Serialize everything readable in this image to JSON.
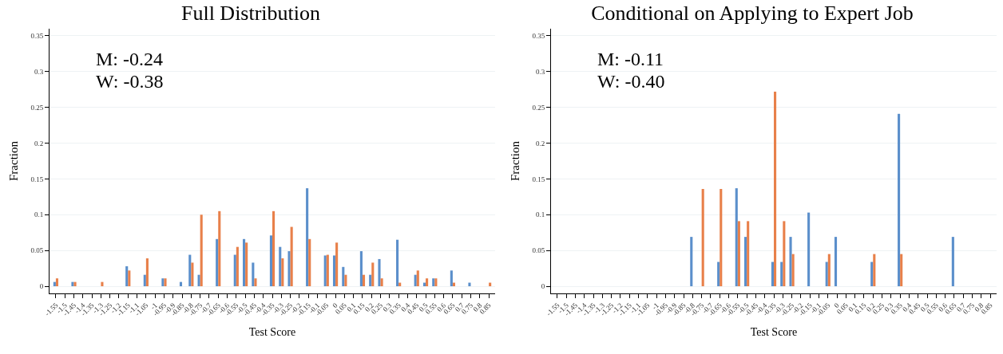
{
  "chart_data": [
    {
      "type": "bar",
      "title": "Full Distribution",
      "xlabel": "Test Score",
      "ylabel": "Fraction",
      "categories": [
        "-1.55",
        "-1.5",
        "-1.45",
        "-1.4",
        "-1.35",
        "-1.3",
        "-1.25",
        "-1.2",
        "-1.15",
        "-1.1",
        "-1.05",
        "-1",
        "-0.95",
        "-0.9",
        "-0.85",
        "-0.8",
        "-0.75",
        "-0.7",
        "-0.65",
        "-0.6",
        "-0.55",
        "-0.5",
        "-0.45",
        "-0.4",
        "-0.35",
        "-0.3",
        "-0.25",
        "-0.2",
        "-0.15",
        "-0.1",
        "-0.05",
        "0",
        "0.05",
        "0.1",
        "0.15",
        "0.2",
        "0.25",
        "0.3",
        "0.35",
        "0.4",
        "0.45",
        "0.5",
        "0.55",
        "0.6",
        "0.65",
        "0.7",
        "0.75",
        "0.8",
        "0.85"
      ],
      "series": [
        {
          "color": "#5b8fcb",
          "values": [
            0.006,
            0,
            0.006,
            0,
            0,
            0,
            0,
            0,
            0.028,
            0,
            0.016,
            0,
            0.011,
            0,
            0.006,
            0.044,
            0.016,
            0,
            0.066,
            0,
            0.044,
            0.066,
            0.033,
            0,
            0.071,
            0.055,
            0.049,
            0,
            0.137,
            0,
            0.043,
            0.043,
            0.027,
            0,
            0.049,
            0.016,
            0.038,
            0,
            0.065,
            0,
            0.016,
            0.005,
            0.011,
            0,
            0.022,
            0,
            0.005,
            0,
            0
          ]
        },
        {
          "color": "#e8804a",
          "values": [
            0.011,
            0,
            0.006,
            0,
            0,
            0.006,
            0,
            0,
            0.022,
            0,
            0.039,
            0,
            0.011,
            0,
            0,
            0.033,
            0.1,
            0,
            0.105,
            0,
            0.055,
            0.061,
            0.011,
            0,
            0.105,
            0.039,
            0.083,
            0,
            0.066,
            0,
            0.044,
            0.061,
            0.016,
            0,
            0.016,
            0.033,
            0.011,
            0,
            0.005,
            0,
            0.022,
            0.011,
            0.011,
            0,
            0.005,
            0,
            0,
            0,
            0.005
          ]
        }
      ],
      "ylim": [
        -0.01,
        0.36
      ],
      "yticks": [
        0,
        0.05,
        0.1,
        0.15,
        0.2,
        0.25,
        0.3,
        0.35
      ],
      "grid": "y",
      "annotations": [
        "M: -0.24",
        "W: -0.38"
      ]
    },
    {
      "type": "bar",
      "title": "Conditional on Applying to Expert Job",
      "xlabel": "Test Score",
      "ylabel": "Fraction",
      "categories": [
        "-1.55",
        "-1.5",
        "-1.45",
        "-1.4",
        "-1.35",
        "-1.3",
        "-1.25",
        "-1.2",
        "-1.15",
        "-1.1",
        "-1.05",
        "-1",
        "-0.95",
        "-0.9",
        "-0.85",
        "-0.8",
        "-0.75",
        "-0.7",
        "-0.65",
        "-0.6",
        "-0.55",
        "-0.5",
        "-0.45",
        "-0.4",
        "-0.35",
        "-0.3",
        "-0.25",
        "-0.2",
        "-0.15",
        "-0.1",
        "-0.05",
        "0",
        "0.05",
        "0.1",
        "0.15",
        "0.2",
        "0.25",
        "0.3",
        "0.35",
        "0.4",
        "0.45",
        "0.5",
        "0.55",
        "0.6",
        "0.65",
        "0.7",
        "0.75",
        "0.8",
        "0.85"
      ],
      "series": [
        {
          "color": "#5b8fcb",
          "values": [
            0,
            0,
            0,
            0,
            0,
            0,
            0,
            0,
            0,
            0,
            0,
            0,
            0,
            0,
            0,
            0.069,
            0,
            0,
            0.034,
            0,
            0.137,
            0.069,
            0,
            0,
            0.034,
            0.034,
            0.069,
            0,
            0.103,
            0,
            0.034,
            0.069,
            0,
            0,
            0,
            0.034,
            0,
            0,
            0.241,
            0,
            0,
            0,
            0,
            0,
            0.069,
            0,
            0,
            0,
            0
          ]
        },
        {
          "color": "#e8804a",
          "values": [
            0,
            0,
            0,
            0,
            0,
            0,
            0,
            0,
            0,
            0,
            0,
            0,
            0,
            0,
            0,
            0,
            0.136,
            0,
            0.136,
            0,
            0.091,
            0.091,
            0,
            0,
            0.272,
            0.091,
            0.045,
            0,
            0,
            0,
            0.045,
            0,
            0,
            0,
            0,
            0.045,
            0,
            0,
            0.045,
            0,
            0,
            0,
            0,
            0,
            0,
            0,
            0,
            0,
            0
          ]
        }
      ],
      "ylim": [
        -0.01,
        0.36
      ],
      "yticks": [
        0,
        0.05,
        0.1,
        0.15,
        0.2,
        0.25,
        0.3,
        0.35
      ],
      "grid": "y",
      "annotations": [
        "M: -0.11",
        "W: -0.40"
      ]
    }
  ]
}
